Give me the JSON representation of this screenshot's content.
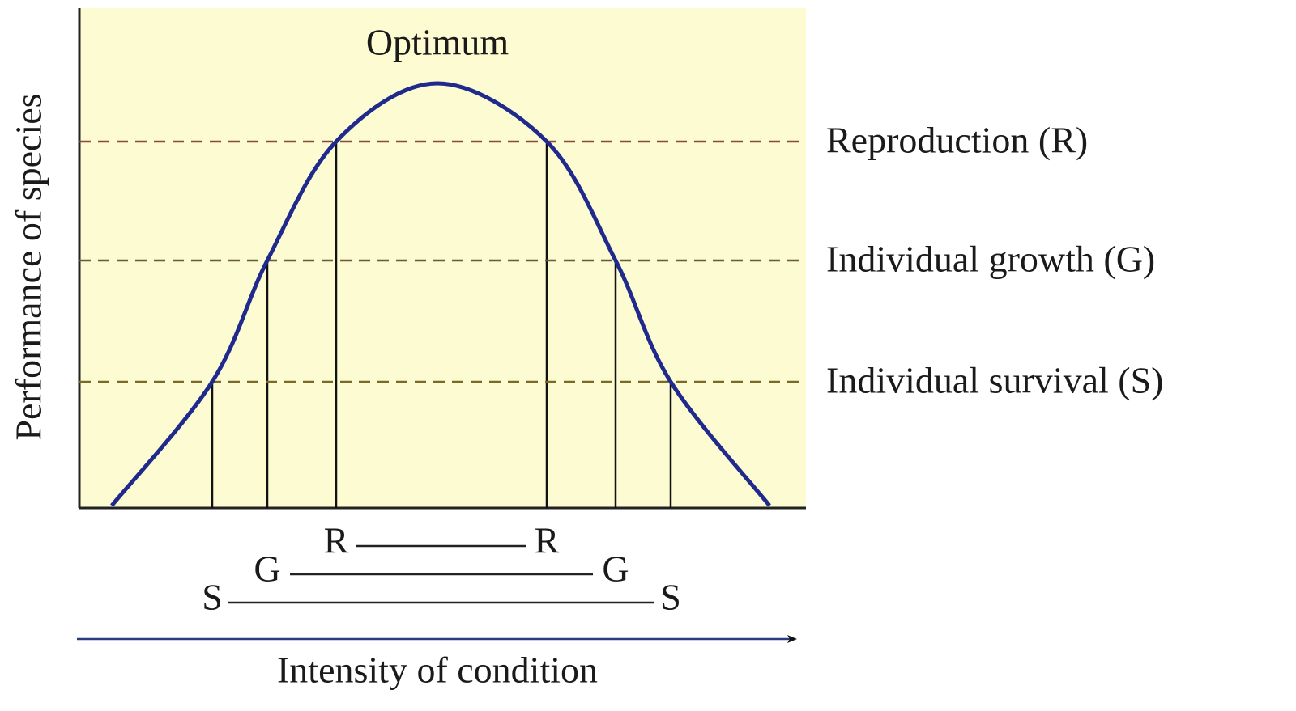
{
  "title": "Optimum",
  "y_axis_label": "Performance of species",
  "x_axis_label": "Intensity of condition",
  "levels": [
    {
      "label": "Reproduction (R)",
      "left": "R",
      "right": "R"
    },
    {
      "label": "Individual growth (G)",
      "left": "G",
      "right": "G"
    },
    {
      "label": "Individual survival (S)",
      "left": "S",
      "right": "S"
    }
  ]
}
